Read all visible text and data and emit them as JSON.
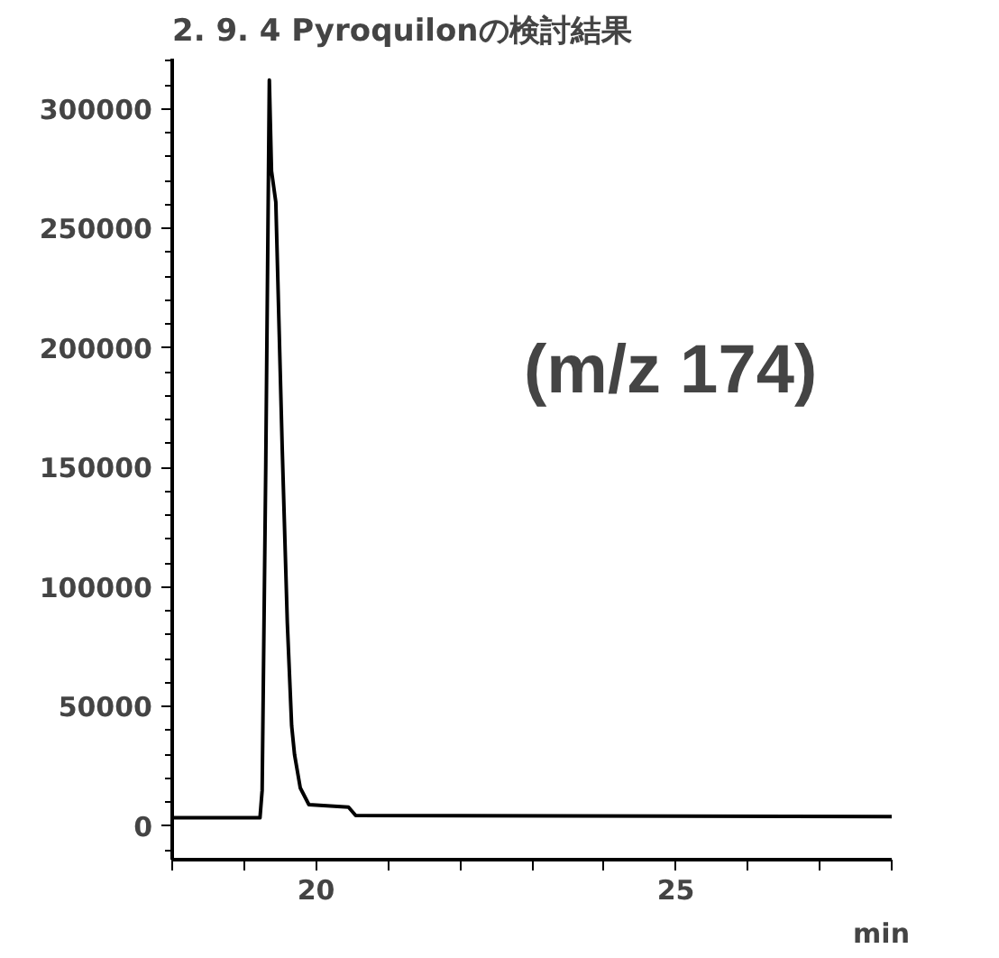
{
  "chart_data": {
    "type": "line",
    "title": "2. 9. 4 Pyroquilonの検討結果",
    "xlabel": "min",
    "annotations": [
      "(m/z 174)"
    ],
    "x": [
      18.0,
      19.22,
      19.25,
      19.3,
      19.35,
      19.38,
      19.44,
      19.53,
      19.6,
      19.66,
      19.7,
      19.78,
      19.9,
      20.45,
      20.55,
      28.0
    ],
    "series": [
      {
        "color": "#000000",
        "values": [
          3500,
          3500,
          15000,
          150000,
          312000,
          274000,
          261000,
          157000,
          85000,
          42000,
          30000,
          16000,
          9000,
          8000,
          4500,
          4000
        ]
      }
    ],
    "xlim": [
      18.0,
      28.0
    ],
    "xticks": [
      {
        "value": 18,
        "label": null
      },
      {
        "value": 19,
        "label": null
      },
      20,
      {
        "value": 21,
        "label": null
      },
      {
        "value": 22,
        "label": null
      },
      {
        "value": 23,
        "label": null
      },
      {
        "value": 24,
        "label": null
      },
      25,
      {
        "value": 26,
        "label": null
      },
      {
        "value": 27,
        "label": null
      },
      {
        "value": 28,
        "label": null
      }
    ],
    "ylim": [
      -14000,
      321000
    ],
    "yticks": [
      0,
      50000,
      100000,
      150000,
      200000,
      250000,
      300000
    ],
    "grid": false,
    "marker": "none",
    "line_style": "solid"
  }
}
